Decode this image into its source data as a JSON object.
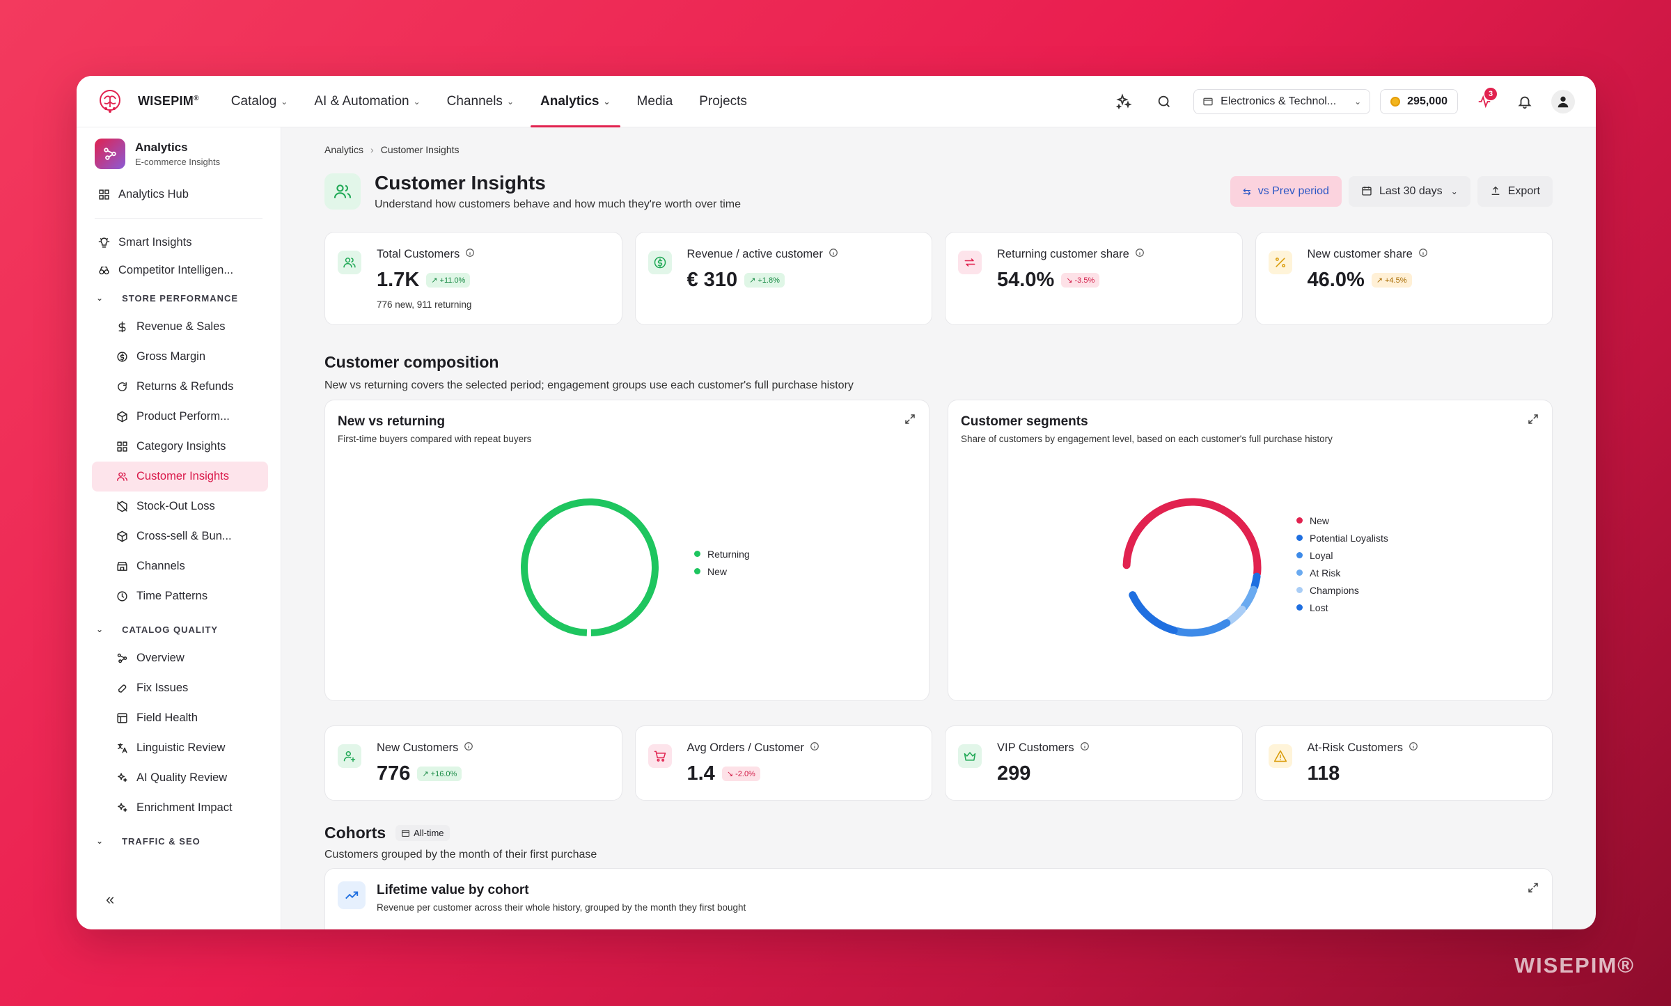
{
  "brand": {
    "name": "WISEPIM",
    "reg": "®",
    "watermark": "WISEPIM®"
  },
  "nav": {
    "items": [
      {
        "label": "Catalog",
        "dropdown": true
      },
      {
        "label": "AI & Automation",
        "dropdown": true
      },
      {
        "label": "Channels",
        "dropdown": true
      },
      {
        "label": "Analytics",
        "dropdown": true,
        "active": true
      },
      {
        "label": "Media",
        "dropdown": false
      },
      {
        "label": "Projects",
        "dropdown": false
      }
    ],
    "store": "Electronics & Technol...",
    "credits": "295,000",
    "notifications": "3"
  },
  "sidebar": {
    "title": "Analytics",
    "subtitle": "E-commerce Insights",
    "hub": "Analytics Hub",
    "top_items": [
      "Smart Insights",
      "Competitor Intelligen..."
    ],
    "sections": [
      {
        "label": "STORE PERFORMANCE",
        "items": [
          "Revenue & Sales",
          "Gross Margin",
          "Returns & Refunds",
          "Product Perform...",
          "Category Insights",
          "Customer Insights",
          "Stock-Out Loss",
          "Cross-sell & Bun...",
          "Channels",
          "Time Patterns"
        ]
      },
      {
        "label": "CATALOG QUALITY",
        "items": [
          "Overview",
          "Fix Issues",
          "Field Health",
          "Linguistic Review",
          "AI Quality Review",
          "Enrichment Impact"
        ]
      },
      {
        "label": "TRAFFIC & SEO",
        "items": []
      }
    ],
    "collapse": "«"
  },
  "breadcrumb": [
    "Analytics",
    "Customer Insights"
  ],
  "page": {
    "title": "Customer Insights",
    "subtitle": "Understand how customers behave and how much they're worth over time",
    "compare_btn": "vs Prev period",
    "range_btn": "Last 30 days",
    "export_btn": "Export"
  },
  "kpis_top": [
    {
      "label": "Total Customers",
      "value": "1.7K",
      "delta": "↗ +11.0%",
      "trend": "up",
      "sub": "776 new, 911 returning",
      "color": "#1fa855",
      "bg": "#e2f6e9"
    },
    {
      "label": "Revenue / active customer",
      "value": "€ 310",
      "delta": "↗ +1.8%",
      "trend": "up",
      "sub": "",
      "color": "#1fa855",
      "bg": "#e2f6e9"
    },
    {
      "label": "Returning customer share",
      "value": "54.0%",
      "delta": "↘ -3.5%",
      "trend": "down",
      "sub": "",
      "color": "#e1224f",
      "bg": "#fde4eb"
    },
    {
      "label": "New customer share",
      "value": "46.0%",
      "delta": "↗ +4.5%",
      "trend": "warn",
      "sub": "",
      "color": "#d99a06",
      "bg": "#fff4d9"
    }
  ],
  "composition": {
    "title": "Customer composition",
    "subtitle": "New vs returning covers the selected period; engagement groups use each customer's full purchase history",
    "new_vs_returning": {
      "title": "New vs returning",
      "subtitle": "First-time buyers compared with repeat buyers",
      "legend": [
        {
          "label": "Returning",
          "color": "#1ec55f"
        },
        {
          "label": "New",
          "color": "#1ec55f"
        }
      ]
    },
    "segments": {
      "title": "Customer segments",
      "subtitle": "Share of customers by engagement level, based on each customer's full purchase history",
      "legend": [
        {
          "label": "New",
          "color": "#e1224f"
        },
        {
          "label": "Potential Loyalists",
          "color": "#1f6fe0"
        },
        {
          "label": "Loyal",
          "color": "#3d8ae8"
        },
        {
          "label": "At Risk",
          "color": "#6aaaf0"
        },
        {
          "label": "Champions",
          "color": "#a9cdf6"
        },
        {
          "label": "Lost",
          "color": "#1f6fe0"
        }
      ]
    }
  },
  "kpis_bottom": [
    {
      "label": "New Customers",
      "value": "776",
      "delta": "↗ +16.0%",
      "trend": "up",
      "color": "#1fa855",
      "bg": "#e2f6e9"
    },
    {
      "label": "Avg Orders / Customer",
      "value": "1.4",
      "delta": "↘ -2.0%",
      "trend": "down",
      "color": "#e1224f",
      "bg": "#fde4eb"
    },
    {
      "label": "VIP Customers",
      "value": "299",
      "delta": "",
      "trend": "",
      "color": "#1fa855",
      "bg": "#e2f6e9"
    },
    {
      "label": "At-Risk Customers",
      "value": "118",
      "delta": "",
      "trend": "",
      "color": "#d99a06",
      "bg": "#fff4d9"
    }
  ],
  "cohorts": {
    "title": "Cohorts",
    "tag": "All-time",
    "subtitle": "Customers grouped by the month of their first purchase",
    "ltv_title": "Lifetime value by cohort",
    "ltv_subtitle": "Revenue per customer across their whole history, grouped by the month they first bought"
  }
}
